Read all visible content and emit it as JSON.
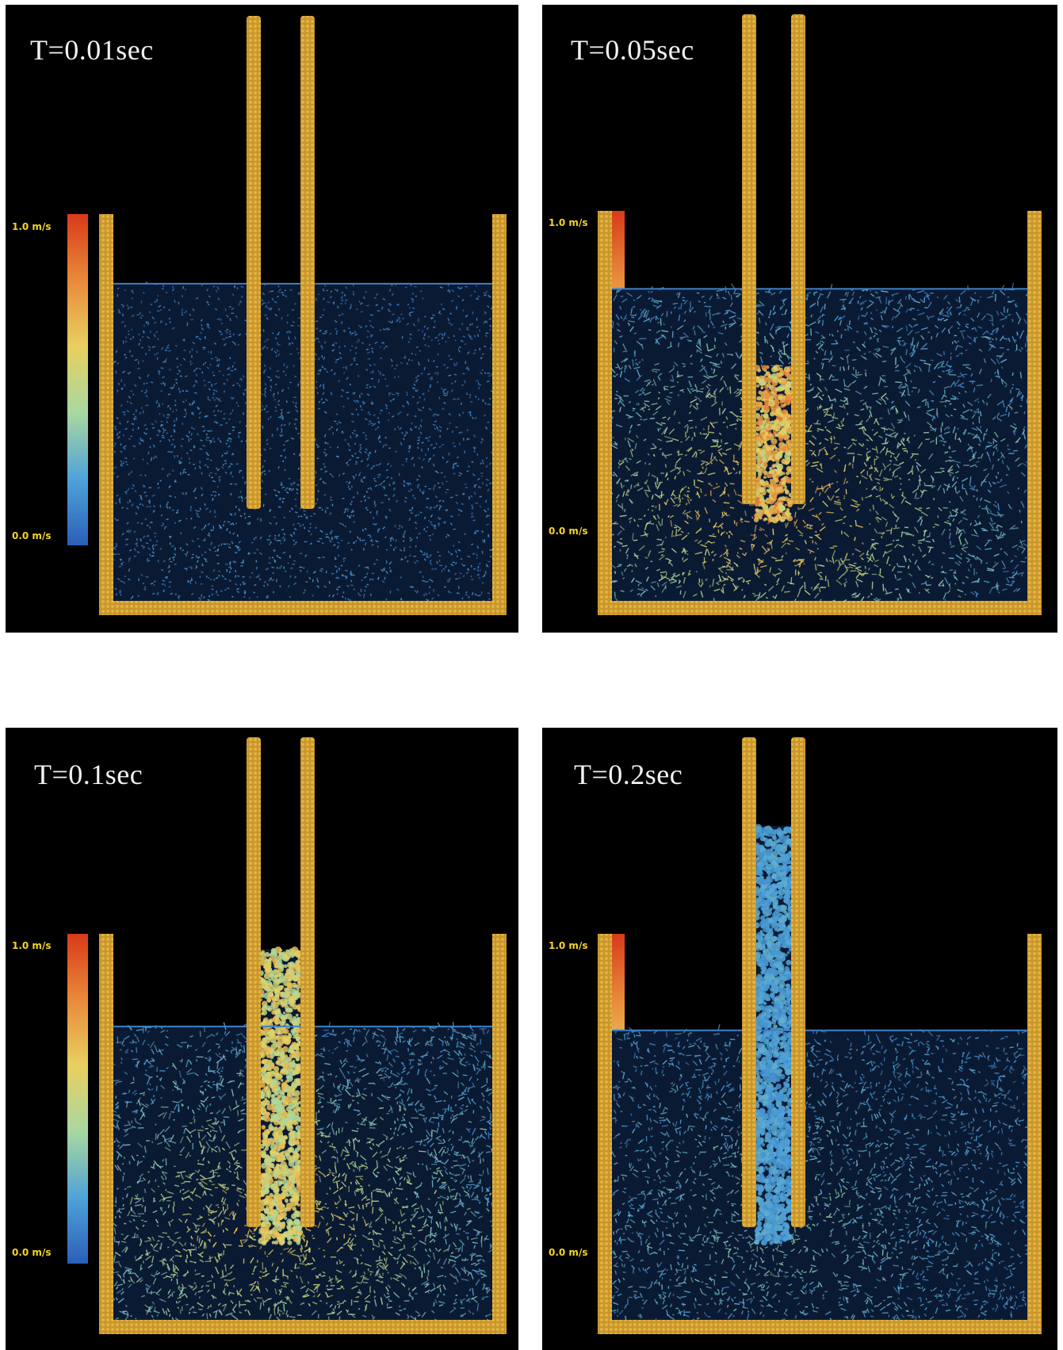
{
  "colors": {
    "background": "#000000",
    "wall": "#c8962a",
    "wall_highlight": "#e8b94a",
    "scale_label": "#f5d42a",
    "colormap": [
      "#2a5fb8",
      "#4fa3d8",
      "#a8d8a0",
      "#e8d060",
      "#e88a3a",
      "#d83a1a"
    ]
  },
  "colorbar": {
    "max_label": "1.0 m/s",
    "min_label": "0.0 m/s",
    "max_value": 1.0,
    "min_value": 0.0
  },
  "panels": [
    {
      "id": "p1",
      "time_label": "T=0.01sec",
      "surface_level": 0.82,
      "column_top": 0.08,
      "plume_strength": 0.15,
      "agitation": 0.15
    },
    {
      "id": "p2",
      "time_label": "T=0.05sec",
      "surface_level": 0.8,
      "column_top": 0.6,
      "plume_strength": 0.85,
      "agitation": 0.55
    },
    {
      "id": "p3",
      "time_label": "T=0.1sec",
      "surface_level": 0.76,
      "column_top": 0.96,
      "plume_strength": 0.7,
      "agitation": 0.55
    },
    {
      "id": "p4",
      "time_label": "T=0.2sec",
      "surface_level": 0.75,
      "column_top": 1.28,
      "plume_strength": 0.25,
      "agitation": 0.45
    }
  ]
}
